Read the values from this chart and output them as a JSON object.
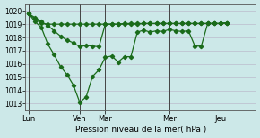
{
  "xlabel": "Pression niveau de la mer( hPa )",
  "bg_color": "#cce8e8",
  "grid_color": "#bbbbcc",
  "line_color": "#1a6b1a",
  "ylim": [
    1012.5,
    1020.5
  ],
  "yticks": [
    1013,
    1014,
    1015,
    1016,
    1017,
    1018,
    1019,
    1020
  ],
  "day_labels": [
    "Lun",
    "Ven",
    "Mar",
    "Mer",
    "Jeu"
  ],
  "day_positions": [
    0.5,
    8.5,
    12.5,
    22.5,
    30.5
  ],
  "vline_positions": [
    0.5,
    8.5,
    12.5,
    22.5,
    30.5
  ],
  "xmin": 0,
  "xmax": 36,
  "series1_x": [
    0.5,
    1.5,
    2.5,
    3.5,
    4.5,
    5.5,
    6.5,
    7.5,
    8.5,
    9.5,
    10.5,
    11.5,
    12.5,
    13.5,
    14.5,
    15.5,
    16.5,
    17.5,
    18.5,
    19.5,
    20.5,
    21.5,
    22.5,
    23.5,
    24.5,
    25.5,
    26.5,
    27.5,
    28.5,
    29.5,
    30.5,
    31.5
  ],
  "series1_y": [
    1019.8,
    1019.4,
    1019.05,
    1019.0,
    1019.0,
    1019.0,
    1019.0,
    1019.0,
    1019.0,
    1019.0,
    1019.0,
    1019.0,
    1019.0,
    1019.0,
    1019.0,
    1019.0,
    1019.0,
    1019.0,
    1019.05,
    1019.05,
    1019.05,
    1019.05,
    1019.05,
    1019.05,
    1019.05,
    1019.05,
    1019.05,
    1019.05,
    1019.05,
    1019.05,
    1019.05,
    1019.1
  ],
  "series2_x": [
    0.5,
    1.5,
    2.5,
    3.5,
    4.5,
    5.5,
    6.5,
    7.5,
    8.5,
    9.5,
    10.5,
    11.5,
    12.5,
    13.5,
    14.5,
    15.5,
    16.5,
    17.5,
    18.5,
    19.5,
    20.5,
    21.5,
    22.5,
    23.5,
    24.5,
    25.5,
    26.5,
    27.5,
    28.5,
    29.5,
    30.5,
    31.5
  ],
  "series2_y": [
    1019.8,
    1019.2,
    1018.75,
    1017.5,
    1016.7,
    1015.8,
    1015.2,
    1014.4,
    1013.1,
    1013.5,
    1015.05,
    1015.55,
    1016.5,
    1016.6,
    1016.15,
    1016.55,
    1016.55,
    1018.4,
    1018.55,
    1018.4,
    1018.5,
    1018.45,
    1018.6,
    1018.5,
    1018.45,
    1018.5,
    1017.35,
    1017.35,
    1019.05,
    1019.05,
    1019.05,
    1019.1
  ],
  "series3_x": [
    0.5,
    1.5,
    2.5,
    3.5,
    4.5,
    5.5,
    6.5,
    7.5,
    8.5,
    9.5,
    10.5,
    11.5,
    12.5,
    13.5,
    14.5,
    15.5,
    16.5,
    17.5,
    18.5,
    19.5,
    20.5,
    21.5,
    22.5,
    23.5,
    24.5,
    25.5,
    26.5,
    27.5,
    28.5,
    29.5,
    30.5,
    31.5
  ],
  "series3_y": [
    1019.8,
    1019.5,
    1019.2,
    1018.9,
    1018.5,
    1018.1,
    1017.8,
    1017.6,
    1017.3,
    1017.4,
    1017.35,
    1017.3,
    1019.0,
    1019.0,
    1019.0,
    1019.05,
    1019.05,
    1019.05,
    1019.05,
    1019.05,
    1019.05,
    1019.05,
    1019.05,
    1019.05,
    1019.05,
    1019.05,
    1019.05,
    1019.05,
    1019.05,
    1019.05,
    1019.05,
    1019.1
  ]
}
